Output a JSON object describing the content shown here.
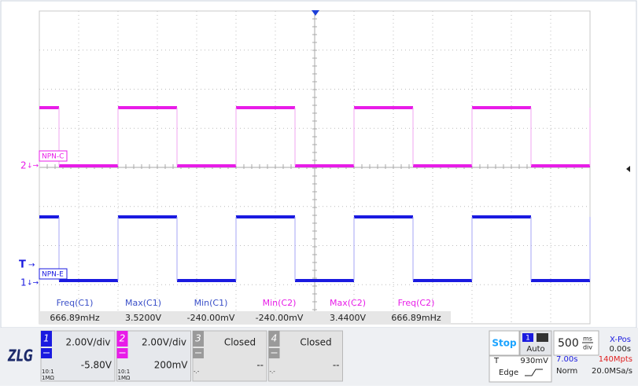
{
  "screen": {
    "trace_labels": [
      "NPN-C",
      "NPN-E"
    ],
    "marker_ch2": "2",
    "marker_trigger": "T",
    "marker_ch1": "1"
  },
  "measurements": [
    {
      "label": "Freq(C1)",
      "value": "666.89mHz"
    },
    {
      "label": "Max(C1)",
      "value": "3.5200V"
    },
    {
      "label": "Min(C1)",
      "value": "-240.00mV"
    },
    {
      "label": "Min(C2)",
      "value": "-240.00mV"
    },
    {
      "label": "Max(C2)",
      "value": "3.4400V"
    },
    {
      "label": "Freq(C2)",
      "value": "666.89mHz"
    }
  ],
  "channels": [
    {
      "number": "1",
      "scale": "2.00V/div",
      "offset": "-5.80V",
      "probe": "10:1",
      "impedance": "1MΩ"
    },
    {
      "number": "2",
      "scale": "2.00V/div",
      "offset": "200mV",
      "probe": "10:1",
      "impedance": "1MΩ"
    },
    {
      "number": "3",
      "scale": "Closed",
      "offset": "--",
      "probe": "-.-"
    },
    {
      "number": "4",
      "scale": "Closed",
      "offset": "--",
      "probe": "-.-"
    }
  ],
  "logo": "ZLG",
  "status": "Stop",
  "trigger": {
    "source": "1",
    "mode": "Auto",
    "level_label": "T",
    "level": "930mV",
    "type": "Edge"
  },
  "timebase": {
    "scale": "500",
    "unit_top": "ms",
    "unit_bottom": "div",
    "delay": "7.00s",
    "memory": "140Mpts",
    "xpos_label": "X-Pos",
    "xpos": "0.00s",
    "acq": "Norm",
    "rate": "20.0MSa/s"
  }
}
